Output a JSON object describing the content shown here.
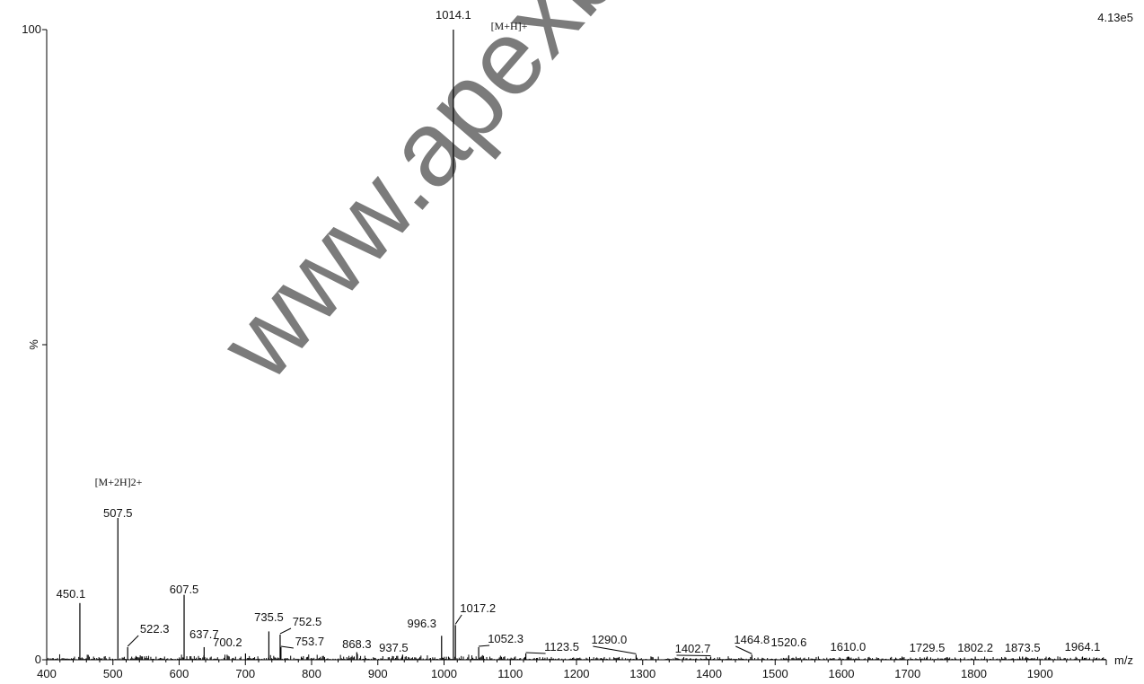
{
  "chart_data": {
    "type": "mass-spectrum",
    "xlabel": "m/z",
    "ylabel": "%",
    "xlim": [
      400,
      2000
    ],
    "ylim": [
      0,
      100
    ],
    "y_ticks": [
      {
        "value": 0,
        "label": "0"
      },
      {
        "value": 100,
        "label": "100"
      }
    ],
    "y_mid_label": "%",
    "x_ticks": [
      400,
      500,
      600,
      700,
      800,
      900,
      1000,
      1100,
      1200,
      1300,
      1400,
      1500,
      1600,
      1700,
      1800,
      1900
    ],
    "intensity_label": "4.13e5",
    "watermark": "www.apexb",
    "peaks": [
      {
        "mz": 450.1,
        "intensity": 9
      },
      {
        "mz": 507.5,
        "intensity": 22.5
      },
      {
        "mz": 522.3,
        "intensity": 2
      },
      {
        "mz": 607.5,
        "intensity": 10.3
      },
      {
        "mz": 637.7,
        "intensity": 2
      },
      {
        "mz": 700.2,
        "intensity": 1
      },
      {
        "mz": 735.5,
        "intensity": 4.5
      },
      {
        "mz": 752.5,
        "intensity": 4
      },
      {
        "mz": 753.7,
        "intensity": 2
      },
      {
        "mz": 868.3,
        "intensity": 1.2
      },
      {
        "mz": 937.5,
        "intensity": 0.8
      },
      {
        "mz": 996.3,
        "intensity": 3.8
      },
      {
        "mz": 1014.1,
        "intensity": 100
      },
      {
        "mz": 1017.2,
        "intensity": 5.5
      },
      {
        "mz": 1052.3,
        "intensity": 2
      },
      {
        "mz": 1123.5,
        "intensity": 1
      },
      {
        "mz": 1290.0,
        "intensity": 0.8
      },
      {
        "mz": 1402.7,
        "intensity": 0.5
      },
      {
        "mz": 1464.8,
        "intensity": 0.8
      },
      {
        "mz": 1520.6,
        "intensity": 0.7
      },
      {
        "mz": 1610.0,
        "intensity": 0.5
      },
      {
        "mz": 1729.5,
        "intensity": 0.5
      },
      {
        "mz": 1802.2,
        "intensity": 0.5
      },
      {
        "mz": 1873.5,
        "intensity": 0.5
      },
      {
        "mz": 1964.1,
        "intensity": 0.5
      }
    ],
    "peak_labels": [
      "450.1",
      "507.5",
      "522.3",
      "607.5",
      "637.7",
      "700.2",
      "735.5",
      "752.5",
      "753.7",
      "868.3",
      "937.5",
      "996.3",
      "1014.1",
      "1017.2",
      "1052.3",
      "1123.5",
      "1290.0",
      "1402.7",
      "1464.8",
      "1520.6",
      "1610.0",
      "1729.5",
      "1802.2",
      "1873.5",
      "1964.1"
    ],
    "annotations": [
      {
        "mz": 1014.1,
        "text": "[M+H]+"
      },
      {
        "mz": 507.5,
        "text": "[M+2H]2+"
      }
    ]
  }
}
